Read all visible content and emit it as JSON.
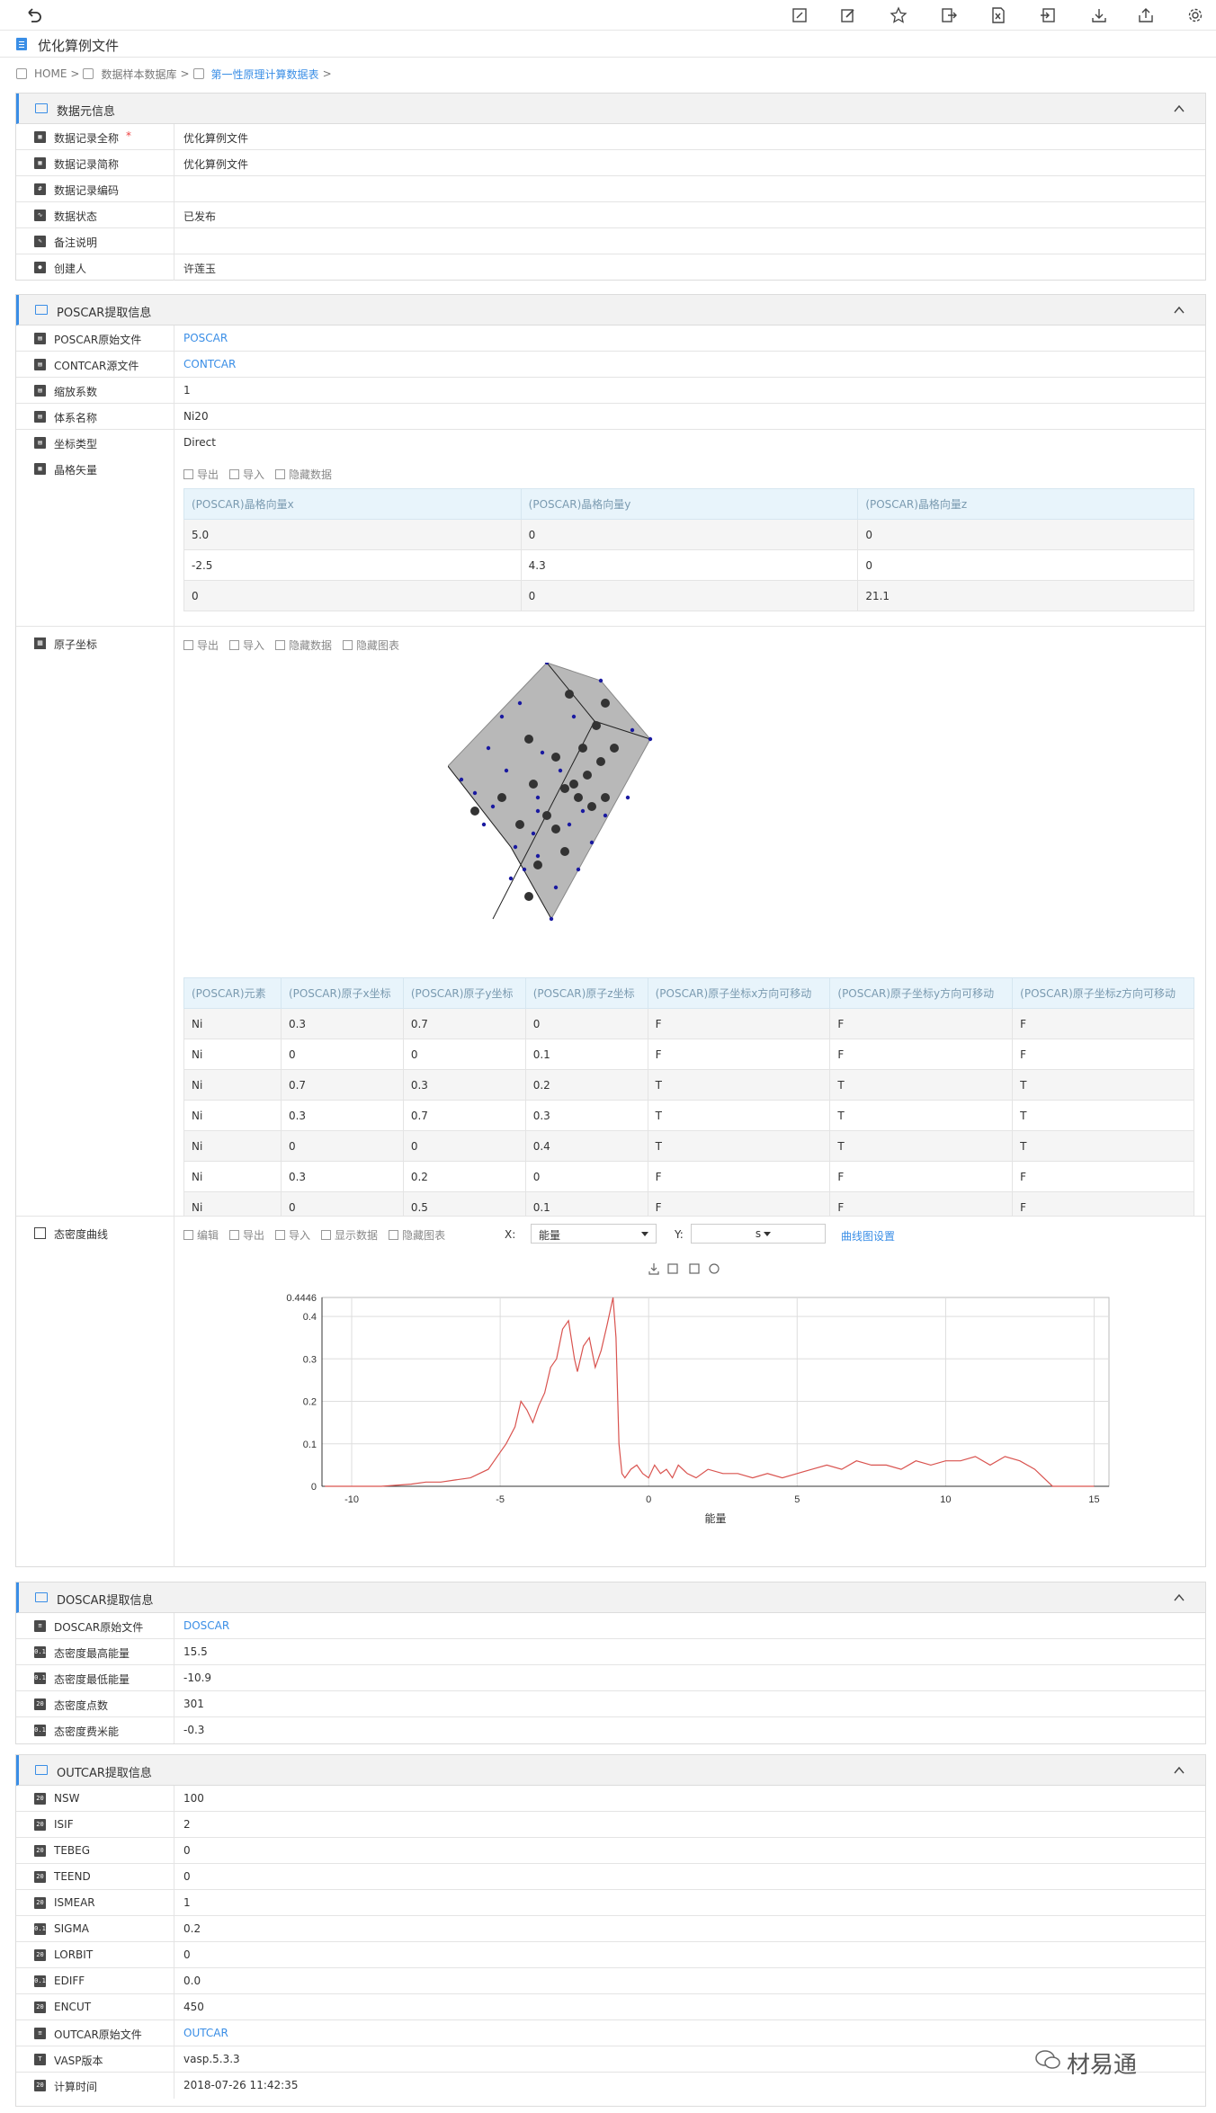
{
  "page": {
    "title": "优化算例文件"
  },
  "breadcrumb": {
    "home": "HOME",
    "sep": ">",
    "db": "数据样本数据库",
    "table": "第一性原理计算数据表"
  },
  "toolbar_icons": [
    "edit-square-icon",
    "edit-icon",
    "star-icon",
    "export-icon",
    "excel-icon",
    "import-icon",
    "download-icon",
    "share-icon",
    "gear-icon"
  ],
  "meta_panel": {
    "title": "数据元信息",
    "rows": [
      {
        "label": "数据记录全称",
        "value": "优化算例文件",
        "required": "*",
        "icon": "grid"
      },
      {
        "label": "数据记录简称",
        "value": "优化算例文件",
        "icon": "grid"
      },
      {
        "label": "数据记录编码",
        "value": "",
        "icon": "code"
      },
      {
        "label": "数据状态",
        "value": "已发布",
        "icon": "chart"
      },
      {
        "label": "备注说明",
        "value": "",
        "icon": "note"
      },
      {
        "label": "创建人",
        "value": "许莲玉",
        "icon": "user"
      }
    ]
  },
  "poscar_panel": {
    "title": "POSCAR提取信息",
    "rows": [
      {
        "label": "POSCAR原始文件",
        "value": "POSCAR",
        "link": true
      },
      {
        "label": "CONTCAR源文件",
        "value": "CONTCAR",
        "link": true
      },
      {
        "label": "缩放系数",
        "value": "1"
      },
      {
        "label": "体系名称",
        "value": "Ni20"
      },
      {
        "label": "坐标类型",
        "value": "Direct"
      }
    ],
    "lattice_label": "晶格矢量",
    "lattice_toolbar": [
      "导出",
      "导入",
      "隐藏数据"
    ],
    "lattice_headers": [
      "(POSCAR)晶格向量x",
      "(POSCAR)晶格向量y",
      "(POSCAR)晶格向量z"
    ],
    "lattice_rows": [
      [
        "5.0",
        "0",
        "0"
      ],
      [
        "-2.5",
        "4.3",
        "0"
      ],
      [
        "0",
        "0",
        "21.1"
      ]
    ],
    "atoms_label": "原子坐标",
    "atoms_toolbar": [
      "导出",
      "导入",
      "隐藏数据",
      "隐藏图表"
    ],
    "atoms_headers": [
      "(POSCAR)元素",
      "(POSCAR)原子x坐标",
      "(POSCAR)原子y坐标",
      "(POSCAR)原子z坐标",
      "(POSCAR)原子坐标x方向可移动",
      "(POSCAR)原子坐标y方向可移动",
      "(POSCAR)原子坐标z方向可移动"
    ],
    "atoms_rows": [
      [
        "Ni",
        "0.3",
        "0.7",
        "0",
        "F",
        "F",
        "F"
      ],
      [
        "Ni",
        "0",
        "0",
        "0.1",
        "F",
        "F",
        "F"
      ],
      [
        "Ni",
        "0.7",
        "0.3",
        "0.2",
        "T",
        "T",
        "T"
      ],
      [
        "Ni",
        "0.3",
        "0.7",
        "0.3",
        "T",
        "T",
        "T"
      ],
      [
        "Ni",
        "0",
        "0",
        "0.4",
        "T",
        "T",
        "T"
      ],
      [
        "Ni",
        "0.3",
        "0.2",
        "0",
        "F",
        "F",
        "F"
      ],
      [
        "Ni",
        "0",
        "0.5",
        "0.1",
        "F",
        "F",
        "F"
      ]
    ],
    "dos_label": "态密度曲线",
    "dos_toolbar": [
      "编辑",
      "导出",
      "导入",
      "显示数据",
      "隐藏图表"
    ],
    "x_label": "X:",
    "x_value": "能量",
    "y_label": "Y:",
    "y_value": "s",
    "curve_settings": "曲线图设置"
  },
  "chart_data": {
    "type": "line",
    "title": "",
    "xlabel": "能量",
    "ylabel": "",
    "xlim": [
      -11,
      15.5
    ],
    "ylim": [
      0,
      0.4446
    ],
    "x_ticks": [
      -10,
      -5,
      0,
      5,
      10,
      15
    ],
    "y_ticks": [
      0,
      0.1,
      0.2,
      0.3,
      0.4
    ],
    "y_max_label": "0.4446",
    "series": [
      {
        "color": "#d9534f",
        "x": [
          -10.9,
          -10,
          -9,
          -8,
          -7.5,
          -7,
          -6.5,
          -6,
          -5.7,
          -5.4,
          -5.2,
          -5,
          -4.8,
          -4.5,
          -4.3,
          -4.1,
          -3.9,
          -3.7,
          -3.5,
          -3.3,
          -3.1,
          -2.9,
          -2.7,
          -2.5,
          -2.4,
          -2.2,
          -2,
          -1.8,
          -1.6,
          -1.4,
          -1.2,
          -1.1,
          -1,
          -0.9,
          -0.8,
          -0.6,
          -0.4,
          -0.2,
          0,
          0.2,
          0.4,
          0.6,
          0.8,
          1,
          1.3,
          1.6,
          2,
          2.5,
          3,
          3.5,
          4,
          4.5,
          5,
          5.5,
          6,
          6.5,
          7,
          7.5,
          8,
          8.5,
          9,
          9.5,
          10,
          10.5,
          11,
          11.5,
          12,
          12.5,
          13,
          13.3,
          13.6,
          14,
          15
        ],
        "y": [
          0,
          0,
          0,
          0.005,
          0.01,
          0.01,
          0.015,
          0.02,
          0.03,
          0.04,
          0.06,
          0.08,
          0.1,
          0.14,
          0.2,
          0.18,
          0.15,
          0.19,
          0.22,
          0.28,
          0.3,
          0.37,
          0.39,
          0.3,
          0.27,
          0.33,
          0.35,
          0.28,
          0.32,
          0.38,
          0.4446,
          0.35,
          0.1,
          0.03,
          0.02,
          0.04,
          0.05,
          0.03,
          0.02,
          0.05,
          0.03,
          0.04,
          0.02,
          0.05,
          0.03,
          0.02,
          0.04,
          0.03,
          0.03,
          0.02,
          0.03,
          0.02,
          0.03,
          0.04,
          0.05,
          0.04,
          0.06,
          0.05,
          0.05,
          0.04,
          0.06,
          0.05,
          0.06,
          0.06,
          0.07,
          0.05,
          0.07,
          0.06,
          0.04,
          0.02,
          0,
          0,
          0
        ]
      }
    ]
  },
  "doscar_panel": {
    "title": "DOSCAR提取信息",
    "rows": [
      {
        "label": "DOSCAR原始文件",
        "value": "DOSCAR",
        "link": true,
        "icon": "doc"
      },
      {
        "label": "态密度最高能量",
        "value": "15.5",
        "icon": "0.1"
      },
      {
        "label": "态密度最低能量",
        "value": "-10.9",
        "icon": "0.1"
      },
      {
        "label": "态密度点数",
        "value": "301",
        "icon": "20"
      },
      {
        "label": "态密度费米能",
        "value": "-0.3",
        "icon": "0.1"
      }
    ]
  },
  "outcar_panel": {
    "title": "OUTCAR提取信息",
    "rows": [
      {
        "label": "NSW",
        "value": "100",
        "icon": "20"
      },
      {
        "label": "ISIF",
        "value": "2",
        "icon": "20"
      },
      {
        "label": "TEBEG",
        "value": "0",
        "icon": "20"
      },
      {
        "label": "TEEND",
        "value": "0",
        "icon": "20"
      },
      {
        "label": "ISMEAR",
        "value": "1",
        "icon": "20"
      },
      {
        "label": "SIGMA",
        "value": "0.2",
        "icon": "0.1"
      },
      {
        "label": "LORBIT",
        "value": "0",
        "icon": "20"
      },
      {
        "label": "EDIFF",
        "value": "0.0",
        "icon": "0.1"
      },
      {
        "label": "ENCUT",
        "value": "450",
        "icon": "20"
      },
      {
        "label": "OUTCAR原始文件",
        "value": "OUTCAR",
        "link": true,
        "icon": "doc"
      },
      {
        "label": "VASP版本",
        "value": "vasp.5.3.3",
        "icon": "T"
      },
      {
        "label": "计算时间",
        "value": "2018-07-26 11:42:35",
        "icon": "20"
      }
    ]
  },
  "watermark": "材易通",
  "colors": {
    "accent": "#3a8ee6",
    "curve": "#d9534f",
    "atom_small": "#1a1aa0",
    "cell": "#b8b8b8"
  }
}
